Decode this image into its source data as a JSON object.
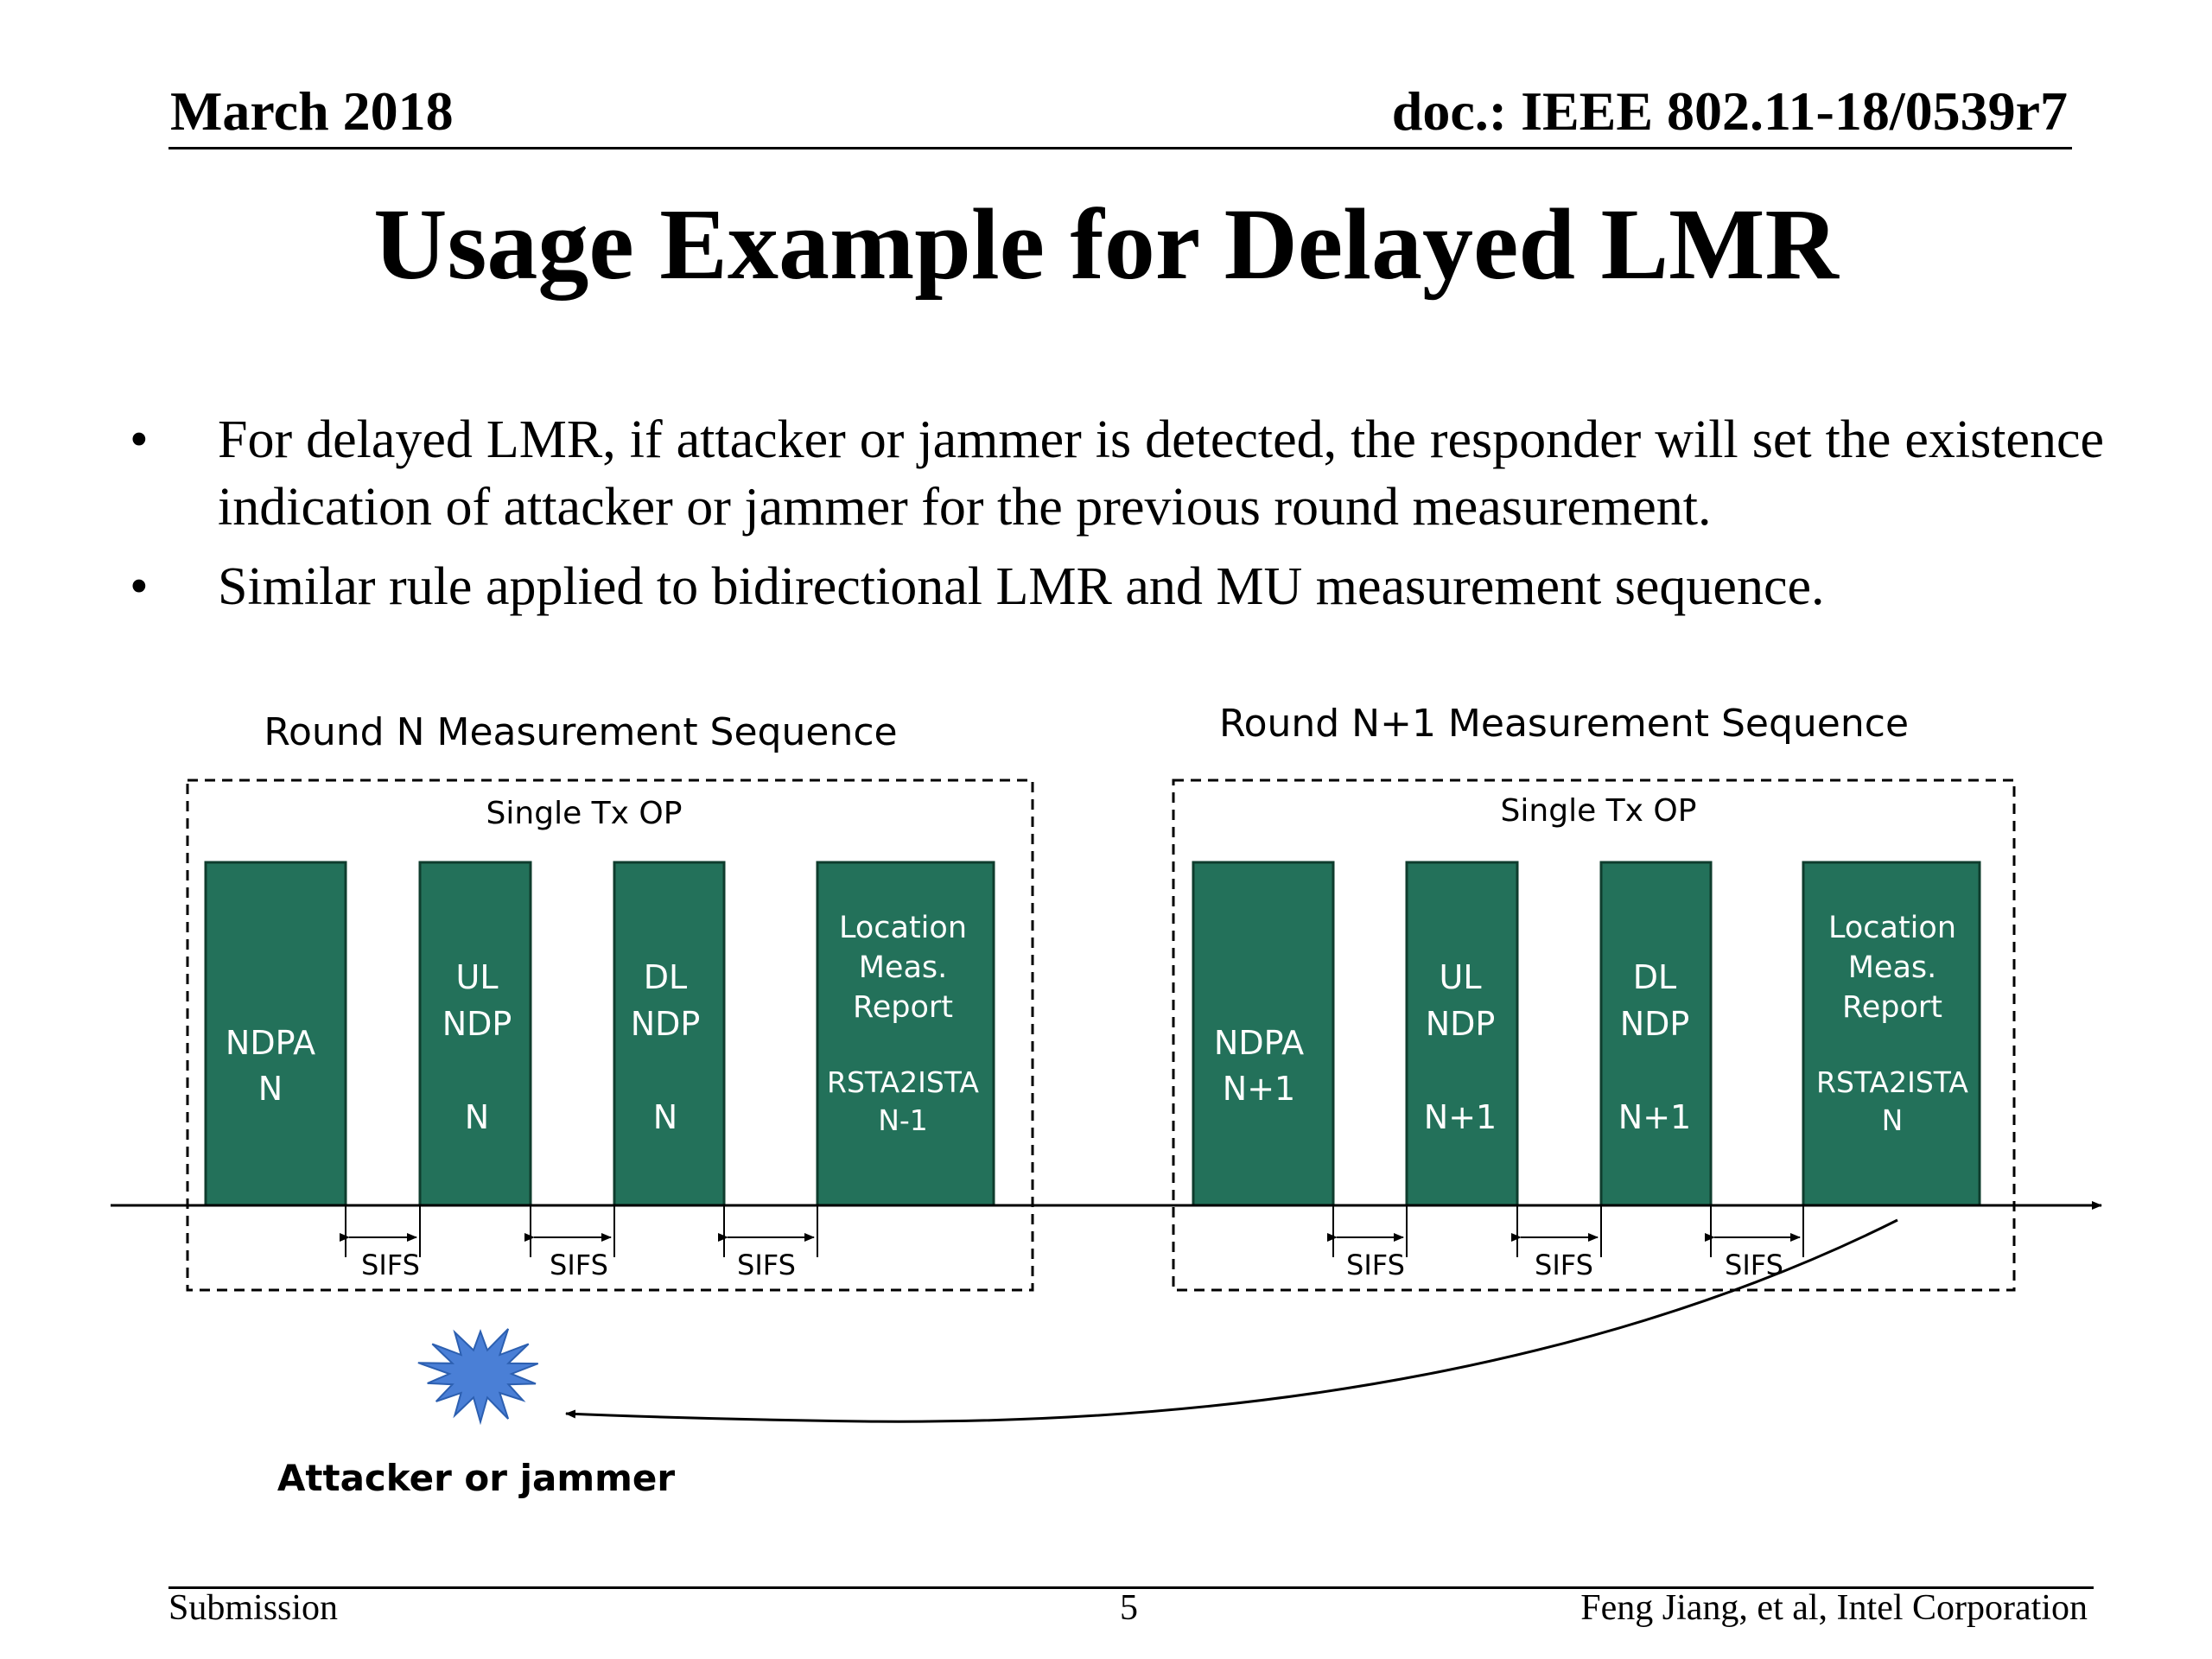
{
  "header": {
    "date": "March 2018",
    "doc_id": "doc.: IEEE 802.11-18/0539r7"
  },
  "title": "Usage Example for Delayed LMR",
  "bullets": [
    "For delayed LMR, if attacker or jammer is detected, the responder will set the existence indication of attacker or jammer for the previous round measurement.",
    "Similar rule applied to bidirectional LMR and MU measurement sequence."
  ],
  "diagram": {
    "colors": {
      "frame_fill": "#23715a",
      "frame_stroke": "#0f3d2e",
      "star": "#4a7fd6"
    },
    "rounds": [
      {
        "title": "Round N Measurement Sequence",
        "txop_label": "Single Tx OP",
        "frames": [
          {
            "lines": [
              "NDPA",
              "N"
            ]
          },
          {
            "lines": [
              "UL",
              "NDP",
              "",
              "N"
            ]
          },
          {
            "lines": [
              "DL",
              "NDP",
              "",
              "N"
            ]
          },
          {
            "lines": [
              "Location",
              "Meas.",
              "Report",
              "",
              "RSTA2ISTA",
              "N-1"
            ]
          }
        ],
        "sifs_labels": [
          "SIFS",
          "SIFS",
          "SIFS"
        ]
      },
      {
        "title": "Round N+1 Measurement Sequence",
        "txop_label": "Single Tx OP",
        "frames": [
          {
            "lines": [
              "NDPA",
              "N+1"
            ]
          },
          {
            "lines": [
              "UL",
              "NDP",
              "",
              "N+1"
            ]
          },
          {
            "lines": [
              "DL",
              "NDP",
              "",
              "N+1"
            ]
          },
          {
            "lines": [
              "Location",
              "Meas.",
              "Report",
              "",
              "RSTA2ISTA",
              "N"
            ]
          }
        ],
        "sifs_labels": [
          "SIFS",
          "SIFS",
          "SIFS"
        ]
      }
    ],
    "attacker_label": "Attacker or jammer"
  },
  "footer": {
    "left": "Submission",
    "page": "5",
    "right": "Feng Jiang, et al, Intel Corporation"
  }
}
